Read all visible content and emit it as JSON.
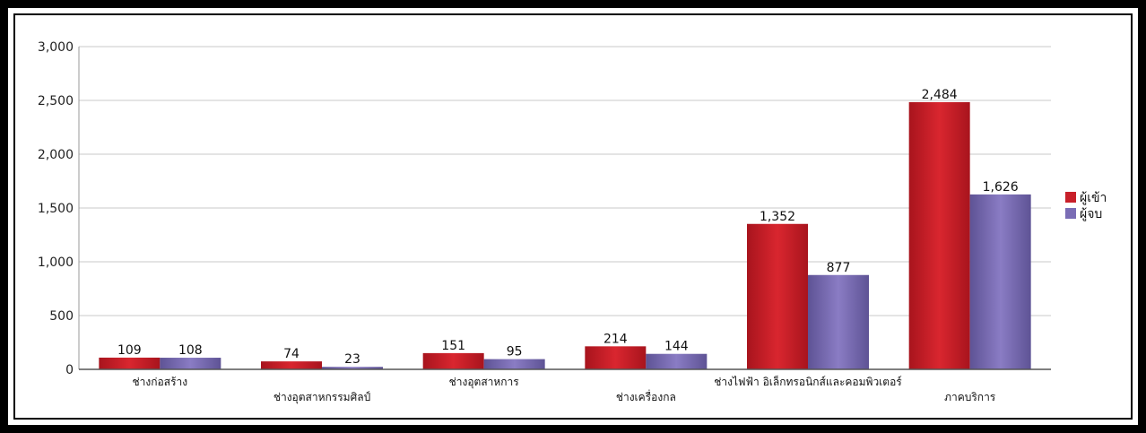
{
  "chart_data": {
    "type": "bar",
    "categories": [
      "ช่างก่อสร้าง",
      "ช่างอุตสาหกรรมศิลป์",
      "ช่างอุตสาหการ",
      "ช่างเครื่องกล",
      "ช่างไฟฟ้า อิเล็กทรอนิกส์และคอมพิวเตอร์",
      "ภาคบริการ"
    ],
    "series": [
      {
        "name": "ผู้เข้า",
        "values": [
          109,
          74,
          151,
          214,
          1352,
          2484
        ],
        "labels": [
          "109",
          "74",
          "151",
          "214",
          "1,352",
          "2,484"
        ],
        "color": "#c8202a"
      },
      {
        "name": "ผู้จบ",
        "values": [
          108,
          23,
          95,
          144,
          877,
          1626
        ],
        "labels": [
          "108",
          "23",
          "95",
          "144",
          "877",
          "1,626"
        ],
        "color": "#7a6db5"
      }
    ],
    "ylim": [
      0,
      3000
    ],
    "yticks": [
      0,
      500,
      1000,
      1500,
      2000,
      2500,
      3000
    ],
    "ytick_labels": [
      "0",
      "500",
      "1,000",
      "1,500",
      "2,000",
      "2,500",
      "3,000"
    ],
    "grid": true,
    "legend_position": "right"
  }
}
